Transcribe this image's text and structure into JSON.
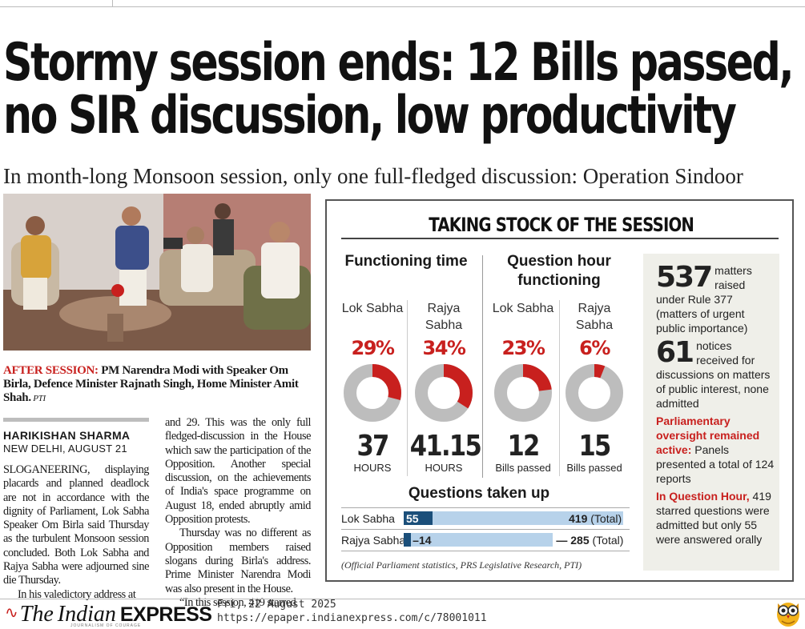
{
  "article": {
    "headline_line1": "Stormy session ends: 12 Bills passed,",
    "headline_line2": "no SIR discussion, low productivity",
    "subheadline": "In month-long Monsoon session, only one full-fledged discussion: Operation Sindoor",
    "caption": {
      "lead": "AFTER SESSION:",
      "text": " PM Narendra Modi with Speaker Om Birla, Defence Minister Rajnath Singh, Home Minister Amit Shah.",
      "credit": " PTI"
    },
    "byline": "HARIKISHAN SHARMA",
    "dateline": "NEW DELHI, AUGUST 21",
    "col1_p1": "SLOGANEERING, displaying placards and planned deadlock are not in accordance with the dignity of Parliament, Lok Sabha Speaker Om Birla said Thursday as the turbulent Monsoon session concluded. Both Lok Sabha and Rajya Sabha were adjourned sine die Thursday.",
    "col1_p2": "In his valedictory address at",
    "col2_p1": "and 29. This was the only full fledged-discussion in the House which saw the participation of the Opposition. Another special discussion, on the achievements of India's space programme on August 18, ended abruptly amid Opposition protests.",
    "col2_p2": "Thursday was no different as Opposition members raised slogans during Birla's address. Prime Minister Narendra Modi was also present in the House.",
    "col2_p3": "“In this session, 419 starred"
  },
  "infographic": {
    "title": "TAKING STOCK OF THE SESSION",
    "functioning_title": "Functioning time",
    "question_hour_title": "Question hour functioning",
    "houses": [
      {
        "label": "Lok Sabha",
        "pct_label": "29%",
        "pct": 29,
        "figure": "37",
        "unit": "HOURS"
      },
      {
        "label": "Rajya Sabha",
        "pct_label": "34%",
        "pct": 34,
        "figure": "41.15",
        "unit": "HOURS"
      },
      {
        "label": "Lok Sabha",
        "pct_label": "23%",
        "pct": 23,
        "figure": "12",
        "unit": "Bills passed"
      },
      {
        "label": "Rajya Sabha",
        "pct_label": "6%",
        "pct": 6,
        "figure": "15",
        "unit": "Bills passed"
      }
    ],
    "questions_title": "Questions taken up",
    "questions": [
      {
        "label": "Lok Sabha",
        "value": 55,
        "value_label": "55",
        "total": 419,
        "total_label": "419",
        "total_suffix": " (Total)"
      },
      {
        "label": "Rajya Sabha",
        "value": 14,
        "value_label": "14",
        "total": 285,
        "total_label": "285",
        "total_suffix": " (Total)"
      }
    ],
    "source": "(Official Parliament statistics, PRS Legislative Research, PTI)",
    "sidebar": {
      "stat1_number": "537",
      "stat1_text": "matters raised under Rule 377 (matters of urgent public importance)",
      "stat2_number": "61",
      "stat2_text": "notices received for discussions on matters of public interest, none admitted",
      "para1_lead": "Parliamentary oversight remained active:",
      "para1_text": " Panels presented a total of 124 reports",
      "para2_lead": "In Question Hour,",
      "para2_text": " 419 starred questions were admitted but only 55 were answered orally"
    },
    "colors": {
      "accent": "#c8201e",
      "donut_rest": "#bdbdbd",
      "bar_fill": "#1b4f7a",
      "bar_bg": "#b7d2ea"
    }
  },
  "footer": {
    "logo_the": "The",
    "logo_indian": "Indian",
    "logo_express": "EXPRESS",
    "logo_tagline": "JOURNALISM OF COURAGE",
    "date": "Fri, 22 August 2025",
    "url": "https://epaper.indianexpress.com/c/78001011",
    "mascot_icon": "owl-icon"
  },
  "chart_data": [
    {
      "type": "pie",
      "title": "Functioning time",
      "categories": [
        "Lok Sabha",
        "Rajya Sabha"
      ],
      "values": [
        29,
        34
      ],
      "unit": "%"
    },
    {
      "type": "pie",
      "title": "Question hour functioning",
      "categories": [
        "Lok Sabha",
        "Rajya Sabha"
      ],
      "values": [
        23,
        6
      ],
      "unit": "%"
    },
    {
      "type": "bar",
      "title": "Questions taken up",
      "categories": [
        "Lok Sabha",
        "Rajya Sabha"
      ],
      "series": [
        {
          "values": [
            55,
            14
          ]
        },
        {
          "name": "(Total)",
          "values": [
            419,
            285
          ]
        }
      ]
    }
  ]
}
